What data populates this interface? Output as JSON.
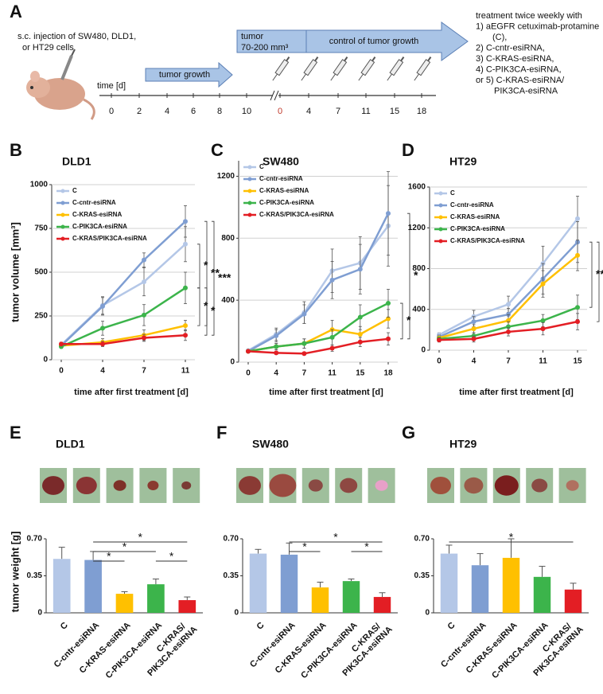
{
  "diagram": {
    "panel": "A",
    "injection": [
      "s.c. injection of SW480, DLD1,",
      "or HT29 cells"
    ],
    "time_label": "time [d]",
    "growth_ticks": [
      0,
      2,
      4,
      6,
      8,
      10
    ],
    "treatment_ticks": [
      0,
      4,
      7,
      11,
      15,
      18
    ],
    "tumor_growth": "tumor growth",
    "tumor_size": [
      "tumor",
      "70-200 mm³"
    ],
    "control": "control of tumor growth",
    "treatment": [
      "treatment twice weekly with",
      "1) aEGFR cetuximab-protamine",
      "(C),",
      "2) C-cntr-esiRNA,",
      "3) C-KRAS-esiRNA,",
      "4) C-PIK3CA-esiRNA,",
      "or 5) C-KRAS-esiRNA/",
      "PIK3CA-esiRNA"
    ]
  },
  "chart_data": [
    {
      "type": "line",
      "label": "B",
      "title": "DLD1",
      "ylabel": "tumor volume [mm³]",
      "xlabel": "time after first treatment [d]",
      "categories": [
        "0",
        "4",
        "7",
        "11"
      ],
      "ylim": [
        0,
        1000
      ],
      "yticks": [
        0,
        250,
        500,
        750,
        1000
      ],
      "grid": true,
      "series": [
        {
          "name": "C",
          "color": "#b4c7e7",
          "values": [
            85,
            310,
            445,
            660
          ],
          "errors": [
            10,
            50,
            80,
            100
          ]
        },
        {
          "name": "C-cntr-esiRNA",
          "color": "#7f9ed2",
          "values": [
            80,
            305,
            570,
            790
          ],
          "errors": [
            10,
            50,
            40,
            90
          ]
        },
        {
          "name": "C-KRAS-esiRNA",
          "color": "#ffc000",
          "values": [
            80,
            100,
            140,
            195
          ],
          "errors": [
            10,
            20,
            30,
            30
          ]
        },
        {
          "name": "C-PIK3CA-esiRNA",
          "color": "#3cb44b",
          "values": [
            75,
            180,
            255,
            410
          ],
          "errors": [
            10,
            40,
            60,
            90
          ]
        },
        {
          "name": "C-KRAS/PIK3CA-esiRNA",
          "color": "#e31e24",
          "values": [
            90,
            90,
            125,
            140
          ],
          "errors": [
            10,
            15,
            20,
            30
          ]
        }
      ],
      "significance": [
        "*",
        "**",
        "***",
        "*",
        "*"
      ]
    },
    {
      "type": "line",
      "label": "C",
      "title": "SW480",
      "xlabel": "time after first treatment [d]",
      "categories": [
        "0",
        "4",
        "7",
        "11",
        "15",
        "18"
      ],
      "ylim": [
        0,
        1300
      ],
      "yticks": [
        0,
        400,
        800,
        1200
      ],
      "grid": true,
      "series": [
        {
          "name": "C",
          "color": "#b4c7e7",
          "values": [
            75,
            180,
            320,
            590,
            640,
            880
          ],
          "errors": [
            10,
            40,
            70,
            140,
            170,
            260
          ]
        },
        {
          "name": "C-cntr-esiRNA",
          "color": "#7f9ed2",
          "values": [
            70,
            170,
            310,
            530,
            600,
            960
          ],
          "errors": [
            10,
            40,
            60,
            120,
            160,
            270
          ]
        },
        {
          "name": "C-KRAS-esiRNA",
          "color": "#ffc000",
          "values": [
            70,
            100,
            120,
            210,
            180,
            280
          ],
          "errors": [
            10,
            20,
            30,
            60,
            50,
            60
          ]
        },
        {
          "name": "C-PIK3CA-esiRNA",
          "color": "#3cb44b",
          "values": [
            70,
            100,
            120,
            160,
            290,
            380
          ],
          "errors": [
            10,
            20,
            30,
            50,
            80,
            90
          ]
        },
        {
          "name": "C-KRAS/PIK3CA-esiRNA",
          "color": "#e31e24",
          "values": [
            70,
            60,
            55,
            90,
            130,
            150
          ],
          "errors": [
            10,
            10,
            10,
            20,
            30,
            40
          ]
        }
      ],
      "significance": [
        "*",
        "*"
      ]
    },
    {
      "type": "line",
      "label": "D",
      "title": "HT29",
      "xlabel": "time after first treatment [d]",
      "categories": [
        "0",
        "4",
        "7",
        "11",
        "15"
      ],
      "ylim": [
        0,
        1600
      ],
      "yticks": [
        0,
        400,
        800,
        1200,
        1600
      ],
      "grid": true,
      "series": [
        {
          "name": "C",
          "color": "#b4c7e7",
          "values": [
            150,
            330,
            450,
            850,
            1290
          ],
          "errors": [
            20,
            60,
            80,
            170,
            220
          ]
        },
        {
          "name": "C-cntr-esiRNA",
          "color": "#7f9ed2",
          "values": [
            130,
            280,
            350,
            700,
            1060
          ],
          "errors": [
            20,
            50,
            60,
            150,
            200
          ]
        },
        {
          "name": "C-KRAS-esiRNA",
          "color": "#ffc000",
          "values": [
            120,
            210,
            290,
            650,
            930
          ],
          "errors": [
            20,
            40,
            60,
            130,
            150
          ]
        },
        {
          "name": "C-PIK3CA-esiRNA",
          "color": "#3cb44b",
          "values": [
            110,
            140,
            230,
            290,
            420
          ],
          "errors": [
            20,
            30,
            50,
            60,
            120
          ]
        },
        {
          "name": "C-KRAS/PIK3CA-esiRNA",
          "color": "#e31e24",
          "values": [
            100,
            110,
            180,
            210,
            280
          ],
          "errors": [
            20,
            30,
            40,
            60,
            80
          ]
        }
      ],
      "significance": [
        "**",
        "*"
      ]
    },
    {
      "type": "bar",
      "label": "E",
      "title": "DLD1",
      "ylabel": "tumor weight [g]",
      "categories": [
        "C",
        "C-cntr-esiRNA",
        "C-KRAS-esiRNA",
        "C-PIK3CA-esiRNA",
        "C-KRAS/ PIK3CA-esiRNA"
      ],
      "colors": [
        "#b4c7e7",
        "#7f9ed2",
        "#ffc000",
        "#3cb44b",
        "#e31e24"
      ],
      "values": [
        0.51,
        0.5,
        0.18,
        0.27,
        0.12
      ],
      "errors": [
        0.11,
        0.08,
        0.02,
        0.05,
        0.03
      ],
      "ylim": [
        0,
        0.7
      ],
      "yticks": [
        0,
        0.35,
        {
          "value": 0.7,
          "label": "0.70"
        }
      ],
      "grid": false,
      "significance": [
        "*",
        "*",
        "*",
        "*"
      ]
    },
    {
      "type": "bar",
      "label": "F",
      "title": "SW480",
      "categories": [
        "C",
        "C-cntr-esiRNA",
        "C-KRAS-esiRNA",
        "C-PIK3CA-esiRNA",
        "C-KRAS/ PIK3CA-esiRNA"
      ],
      "colors": [
        "#b4c7e7",
        "#7f9ed2",
        "#ffc000",
        "#3cb44b",
        "#e31e24"
      ],
      "values": [
        0.56,
        0.55,
        0.24,
        0.3,
        0.15
      ],
      "errors": [
        0.04,
        0.11,
        0.05,
        0.02,
        0.04
      ],
      "ylim": [
        0,
        0.7
      ],
      "yticks": [
        0,
        0.35,
        {
          "value": 0.7,
          "label": "0.70"
        }
      ],
      "grid": false,
      "significance": [
        "*",
        "*",
        "*"
      ]
    },
    {
      "type": "bar",
      "label": "G",
      "title": "HT29",
      "categories": [
        "C",
        "C-cntr-esiRNA",
        "C-KRAS-esiRNA",
        "C-PIK3CA-esiRNA",
        "C-KRAS/ PIK3CA-esiRNA"
      ],
      "colors": [
        "#b4c7e7",
        "#7f9ed2",
        "#ffc000",
        "#3cb44b",
        "#e31e24"
      ],
      "values": [
        0.56,
        0.45,
        0.52,
        0.34,
        0.22
      ],
      "errors": [
        0.08,
        0.11,
        0.18,
        0.1,
        0.06
      ],
      "ylim": [
        0,
        0.7
      ],
      "yticks": [
        0,
        0.35,
        {
          "value": 0.7,
          "label": "0.70"
        }
      ],
      "grid": false,
      "significance": [
        "*"
      ]
    }
  ]
}
